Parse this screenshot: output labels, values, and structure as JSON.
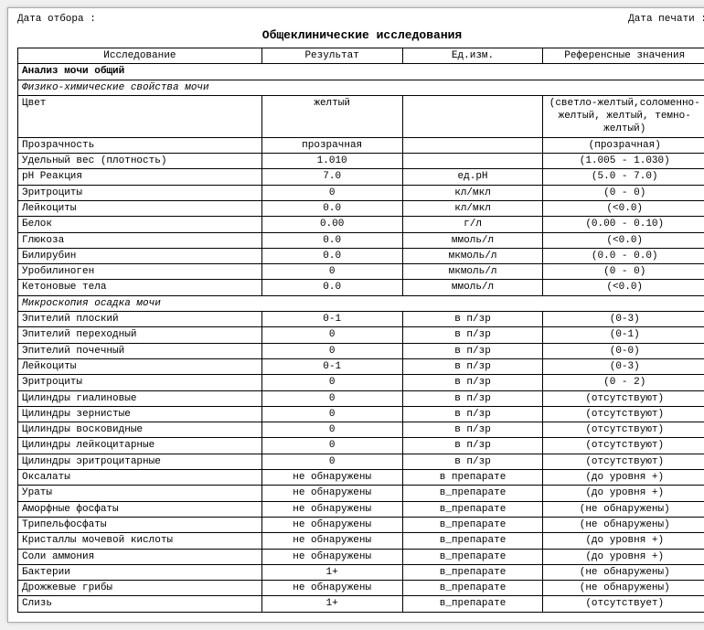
{
  "top_left": "Дата отбора :",
  "top_right": "Дата печати :",
  "title": "Общеклинические исследования",
  "columns": {
    "name": "Исследование",
    "result": "Результат",
    "unit": "Ед.изм.",
    "ref": "Референсные значения"
  },
  "section1": "Анализ мочи общий",
  "subsection1": "Физико-химические свойства мочи",
  "subsection2": "Микроскопия осадка мочи",
  "rows_physico": [
    {
      "name": "Цвет",
      "result": "желтый",
      "unit": "",
      "ref": "(светло-желтый,соломенно-желтый, желтый, темно-желтый)"
    },
    {
      "name": "Прозрачность",
      "result": "прозрачная",
      "unit": "",
      "ref": "(прозрачная)"
    },
    {
      "name": "Удельный вес (плотность)",
      "result": "1.010",
      "unit": "",
      "ref": "(1.005 - 1.030)"
    },
    {
      "name": "рН Реакция",
      "result": "7.0",
      "unit": "ед.рН",
      "ref": "(5.0 - 7.0)"
    },
    {
      "name": "Эритроциты",
      "result": "0",
      "unit": "кл/мкл",
      "ref": "(0 - 0)"
    },
    {
      "name": "Лейкоциты",
      "result": "0.0",
      "unit": "кл/мкл",
      "ref": "(<0.0)"
    },
    {
      "name": "Белок",
      "result": "0.00",
      "unit": "г/л",
      "ref": "(0.00 - 0.10)"
    },
    {
      "name": "Глюкоза",
      "result": "0.0",
      "unit": "ммоль/л",
      "ref": "(<0.0)"
    },
    {
      "name": "Билирубин",
      "result": "0.0",
      "unit": "мкмоль/л",
      "ref": "(0.0 - 0.0)"
    },
    {
      "name": "Уробилиноген",
      "result": "0",
      "unit": "мкмоль/л",
      "ref": "(0 - 0)"
    },
    {
      "name": "Кетоновые тела",
      "result": "0.0",
      "unit": "ммоль/л",
      "ref": "(<0.0)"
    }
  ],
  "rows_micro": [
    {
      "name": "Эпителий плоский",
      "result": "0-1",
      "unit": "в п/зр",
      "ref": "(0-3)"
    },
    {
      "name": "Эпителий переходный",
      "result": "0",
      "unit": "в п/зр",
      "ref": "(0-1)"
    },
    {
      "name": "Эпителий почечный",
      "result": "0",
      "unit": "в п/зр",
      "ref": "(0-0)"
    },
    {
      "name": "Лейкоциты",
      "result": "0-1",
      "unit": "в п/зр",
      "ref": "(0-3)"
    },
    {
      "name": "Эритроциты",
      "result": "0",
      "unit": "в п/зр",
      "ref": "(0 - 2)"
    },
    {
      "name": "Цилиндры гиалиновые",
      "result": "0",
      "unit": "в п/зр",
      "ref": "(отсутствуют)"
    },
    {
      "name": "Цилиндры зернистые",
      "result": "0",
      "unit": "в п/зр",
      "ref": "(отсутствуют)"
    },
    {
      "name": "Цилиндры восковидные",
      "result": "0",
      "unit": "в п/зр",
      "ref": "(отсутствуют)"
    },
    {
      "name": "Цилиндры лейкоцитарные",
      "result": "0",
      "unit": "в п/зр",
      "ref": "(отсутствуют)"
    },
    {
      "name": "Цилиндры эритроцитарные",
      "result": "0",
      "unit": "в п/зр",
      "ref": "(отсутствуют)"
    },
    {
      "name": "Оксалаты",
      "result": "не обнаружены",
      "unit": "в препарате",
      "ref": "(до уровня +)"
    },
    {
      "name": "Ураты",
      "result": "не обнаружены",
      "unit": "в_препарате",
      "ref": "(до уровня +)"
    },
    {
      "name": "Аморфные фосфаты",
      "result": "не обнаружены",
      "unit": "в_препарате",
      "ref": "(не обнаружены)"
    },
    {
      "name": "Трипельфосфаты",
      "result": "не обнаружены",
      "unit": "в_препарате",
      "ref": "(не обнаружены)"
    },
    {
      "name": "Кристаллы мочевой кислоты",
      "result": "не обнаружены",
      "unit": "в_препарате",
      "ref": "(до уровня +)"
    },
    {
      "name": "Соли аммония",
      "result": "не обнаружены",
      "unit": "в_препарате",
      "ref": "(до уровня +)"
    },
    {
      "name": "Бактерии",
      "result": "1+",
      "unit": "в_препарате",
      "ref": "(не обнаружены)"
    },
    {
      "name": "Дрожжевые грибы",
      "result": "не обнаружены",
      "unit": "в_препарате",
      "ref": "(не обнаружены)"
    },
    {
      "name": "Слизь",
      "result": "1+",
      "unit": "в_препарате",
      "ref": "(отсутствует)"
    }
  ]
}
